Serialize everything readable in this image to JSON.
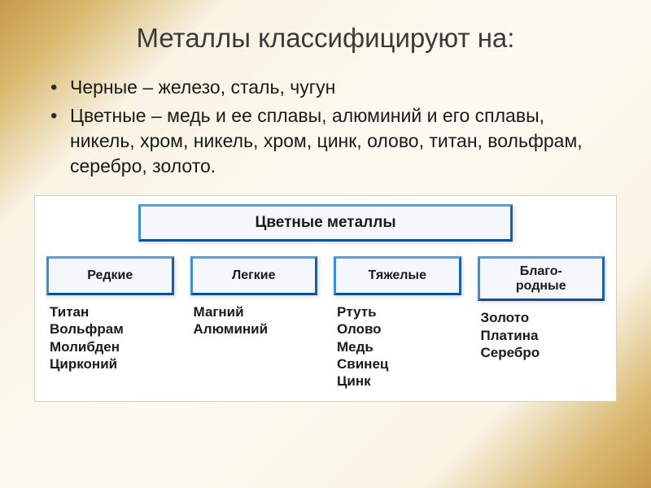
{
  "title": "Металлы классифицируют на:",
  "bullets": [
    "Черные – железо, сталь, чугун",
    "Цветные – медь и ее сплавы, алюминий и его сплавы, никель, хром, никель, хром, цинк, олово, титан, вольфрам, серебро, золото."
  ],
  "diagram": {
    "root": "Цветные металлы",
    "box_style": {
      "border_top": "#4aa3e8",
      "border_left": "#3b8fd6",
      "border_right": "#1a5fa8",
      "border_bottom": "#0f4f96",
      "background": "#f4f8fc"
    },
    "categories": [
      {
        "label": "Редкие",
        "examples": [
          "Титан",
          "Вольфрам",
          "Молибден",
          "Цирконий"
        ]
      },
      {
        "label": "Легкие",
        "examples": [
          "Магний",
          "Алюминий"
        ]
      },
      {
        "label": "Тяжелые",
        "examples": [
          "Ртуть",
          "Олово",
          "Медь",
          "Свинец",
          "Цинк"
        ]
      },
      {
        "label": "Благо-\nродные",
        "examples": [
          "Золото",
          "Платина",
          "Серебро"
        ]
      }
    ]
  },
  "colors": {
    "text": "#1a1a1a",
    "title": "#3a3a3a",
    "slide_bg_center": "#fdfbf2",
    "slide_bg_edge": "#c79a4a"
  }
}
